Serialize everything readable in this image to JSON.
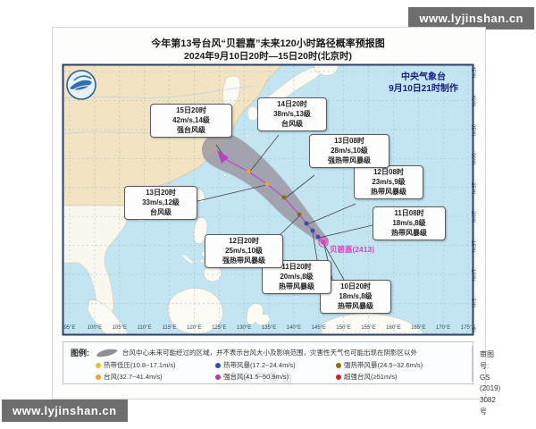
{
  "watermark": {
    "text": "www.lyjinshan.cn"
  },
  "title": {
    "line1": "今年第13号台风“贝碧嘉”未来120小时路径概率预报图",
    "line2": "2024年9月10日20时—15日20时(北京时)"
  },
  "map": {
    "agency": "中央气象台",
    "issued": "9月10日21时制作",
    "storm_label": "贝碧嘉(2413)",
    "labels": [
      {
        "time": "10日20时",
        "wind": "18m/s,8级",
        "level": "热带风暴级"
      },
      {
        "time": "11日08时",
        "wind": "18m/s,8级",
        "level": "热带风暴级"
      },
      {
        "time": "11日20时",
        "wind": "20m/s,8级",
        "level": "热带风暴级"
      },
      {
        "time": "12日08时",
        "wind": "23m/s,9级",
        "level": "热带风暴级"
      },
      {
        "time": "12日20时",
        "wind": "25m/s,10级",
        "level": "强热带风暴级"
      },
      {
        "time": "13日08时",
        "wind": "28m/s,10级",
        "level": "强热带风暴级"
      },
      {
        "time": "13日20时",
        "wind": "33m/s,12级",
        "level": "台风级"
      },
      {
        "time": "14日20时",
        "wind": "38m/s,13级",
        "level": "台风级"
      },
      {
        "time": "15日20时",
        "wind": "42m/s,14级",
        "level": "强台风级"
      }
    ],
    "lon_labels": [
      "95°E",
      "100°E",
      "105°E",
      "110°E",
      "115°E",
      "120°E",
      "125°E",
      "130°E",
      "135°E",
      "140°E",
      "145°E",
      "150°E",
      "155°E",
      "160°E",
      "165°E",
      "170°E",
      "175°E"
    ],
    "lat_labels": [
      "45°N",
      "40°N",
      "35°N",
      "30°N",
      "25°N",
      "20°N",
      "15°N",
      "10°N",
      "5°N",
      "0°"
    ]
  },
  "legend": {
    "title": "图例:",
    "cone_note": "台风中心未来可能经过的区域，并不表示台风大小及影响范围，灾害性天气也可能出现在阴影区以外",
    "items": [
      {
        "label": "热带低压(10.8~17.1m/s)",
        "color": "#e0c22c"
      },
      {
        "label": "热带风暴(17.2~24.4m/s)",
        "color": "#2a4fae"
      },
      {
        "label": "强热带风暴(24.5~32.6m/s)",
        "color": "#8a6d00"
      },
      {
        "label": "台风(32.7~41.4m/s)",
        "color": "#f0a32f"
      },
      {
        "label": "强台风(41.5~50.9m/s)",
        "color": "#a93fae"
      },
      {
        "label": "超强台风(≥51m/s)",
        "color": "#cc2222"
      }
    ]
  },
  "approval": {
    "label": "审图号:",
    "number": "GS (2019) 3082号"
  },
  "colors": {
    "sea": "#c3e5f2",
    "land_china": "#f2e3c2",
    "land_other": "#fbfaf3",
    "cone": "#98949e",
    "track": "#c03fc0",
    "current_marker": "#e23ec0",
    "grid": "#8fc0da",
    "map_border": "#2c3e66"
  }
}
